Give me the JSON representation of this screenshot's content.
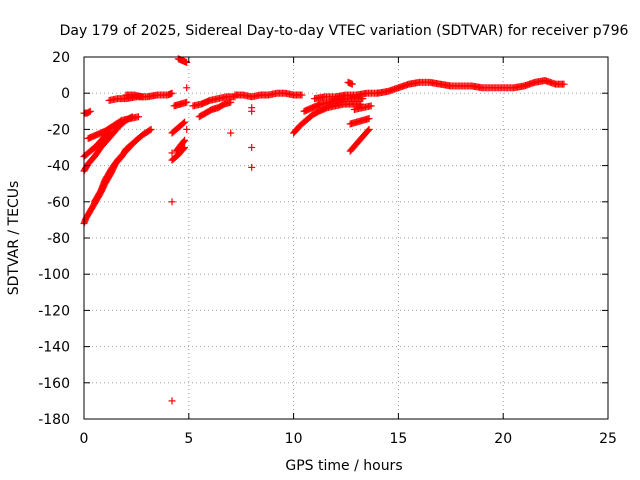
{
  "chart_data": {
    "type": "scatter",
    "title": "Day 179 of 2025, Sidereal Day-to-day VTEC variation (SDTVAR) for receiver p796",
    "xlabel": "GPS time / hours",
    "ylabel": "SDTVAR / TECUs",
    "xlim": [
      0,
      25
    ],
    "ylim": [
      -180,
      20
    ],
    "xticks": [
      0,
      5,
      10,
      15,
      20,
      25
    ],
    "yticks": [
      20,
      0,
      -20,
      -40,
      -60,
      -80,
      -100,
      -120,
      -140,
      -160,
      -180
    ],
    "grid": true,
    "marker": "+",
    "color": "#ff0000",
    "segments": [
      {
        "x": [
          0.0,
          0.1,
          0.3,
          0.5,
          0.8,
          1.0,
          1.3,
          1.5,
          1.8,
          2.0,
          2.3,
          2.6
        ],
        "y": [
          -72,
          -69,
          -65,
          -61,
          -55,
          -50,
          -44,
          -39,
          -35,
          -31,
          -28,
          -25
        ]
      },
      {
        "x": [
          0.5,
          0.8,
          1.0,
          1.3,
          1.6,
          2.0,
          2.4,
          2.8,
          3.2
        ],
        "y": [
          -60,
          -54,
          -48,
          -42,
          -37,
          -32,
          -27,
          -23,
          -20
        ]
      },
      {
        "x": [
          0.0,
          0.2,
          0.5,
          0.8,
          1.1,
          1.4,
          1.7,
          2.0,
          2.3
        ],
        "y": [
          -43,
          -39,
          -35,
          -30,
          -26,
          -22,
          -18,
          -15,
          -13
        ]
      },
      {
        "x": [
          0.0,
          0.3,
          0.6,
          0.9,
          1.2
        ],
        "y": [
          -35,
          -32,
          -29,
          -25,
          -21
        ]
      },
      {
        "x": [
          0.2,
          0.6,
          1.0,
          1.4,
          1.8,
          2.2,
          2.6
        ],
        "y": [
          -25,
          -23,
          -21,
          -18,
          -15,
          -14,
          -13
        ]
      },
      {
        "x": [
          0.0,
          0.15,
          0.3
        ],
        "y": [
          -11,
          -11,
          -10
        ]
      },
      {
        "x": [
          1.2,
          1.6,
          2.0,
          2.5,
          3.0,
          3.5,
          4.0,
          4.2
        ],
        "y": [
          -4,
          -3,
          -3,
          -2,
          -2,
          -1,
          -1,
          0
        ]
      },
      {
        "x": [
          2.0,
          2.4,
          2.8
        ],
        "y": [
          -1,
          -1,
          -2
        ]
      },
      {
        "x": [
          4.2,
          4.5,
          4.8
        ],
        "y": [
          -37,
          -34,
          -30
        ]
      },
      {
        "x": [
          4.4,
          4.6,
          4.8
        ],
        "y": [
          -32,
          -29,
          -26
        ]
      },
      {
        "x": [
          4.2,
          4.5,
          4.8
        ],
        "y": [
          -22,
          -19,
          -16
        ]
      },
      {
        "x": [
          4.3,
          4.6,
          4.9
        ],
        "y": [
          -7,
          -6,
          -5
        ]
      },
      {
        "x": [
          4.5,
          4.7,
          4.9
        ],
        "y": [
          19,
          18,
          17
        ]
      },
      {
        "x": [
          5.5,
          5.8,
          6.1,
          6.4,
          6.7,
          7.0
        ],
        "y": [
          -13,
          -11,
          -9,
          -8,
          -6,
          -5
        ]
      },
      {
        "x": [
          5.2,
          5.6,
          6.0,
          6.4,
          6.8,
          7.2
        ],
        "y": [
          -7,
          -6,
          -4,
          -3,
          -2,
          -2
        ]
      },
      {
        "x": [
          7.2,
          7.6,
          8.0,
          8.4,
          8.8,
          9.2,
          9.6,
          10.0,
          10.4
        ],
        "y": [
          -1,
          -1,
          -2,
          -1,
          -1,
          0,
          0,
          -1,
          -1
        ]
      },
      {
        "x": [
          10.0,
          10.3,
          10.6,
          10.9,
          11.2,
          11.6,
          12.0,
          12.4,
          12.8,
          13.2
        ],
        "y": [
          -22,
          -18,
          -15,
          -12,
          -10,
          -8,
          -7,
          -6,
          -6,
          -6
        ]
      },
      {
        "x": [
          10.5,
          10.9,
          11.3,
          11.7,
          12.1,
          12.5,
          12.9,
          13.3
        ],
        "y": [
          -10,
          -8,
          -6,
          -5,
          -4,
          -3,
          -3,
          -3
        ]
      },
      {
        "x": [
          11.0,
          11.5,
          12.0,
          12.5,
          13.0,
          13.5,
          14.0
        ],
        "y": [
          -3,
          -2,
          -2,
          -1,
          -1,
          0,
          0
        ]
      },
      {
        "x": [
          12.7,
          13.0,
          13.3,
          13.6
        ],
        "y": [
          -32,
          -28,
          -24,
          -20
        ]
      },
      {
        "x": [
          12.7,
          13.0,
          13.3,
          13.6
        ],
        "y": [
          -17,
          -16,
          -15,
          -14
        ]
      },
      {
        "x": [
          12.9,
          13.3,
          13.7
        ],
        "y": [
          -9,
          -8,
          -7
        ]
      },
      {
        "x": [
          12.6,
          12.8
        ],
        "y": [
          6,
          5
        ]
      },
      {
        "x": [
          14.0,
          14.5,
          15.0,
          15.5,
          16.0,
          16.5,
          17.0,
          17.5,
          18.0,
          18.5,
          19.0,
          19.5,
          20.0,
          20.5,
          21.0,
          21.5,
          22.0,
          22.5,
          22.9
        ],
        "y": [
          0,
          1,
          3,
          5,
          6,
          6,
          5,
          4,
          4,
          4,
          3,
          3,
          3,
          3,
          4,
          6,
          7,
          5,
          5
        ]
      }
    ],
    "isolated": [
      {
        "x": 4.2,
        "y": -170
      },
      {
        "x": 4.2,
        "y": -60
      },
      {
        "x": 4.2,
        "y": -33
      },
      {
        "x": 4.9,
        "y": -20
      },
      {
        "x": 4.9,
        "y": 3
      },
      {
        "x": 7.0,
        "y": -22
      },
      {
        "x": 8.0,
        "y": -41
      },
      {
        "x": 8.0,
        "y": -30
      },
      {
        "x": 8.0,
        "y": -10
      },
      {
        "x": 8.0,
        "y": -8
      }
    ]
  }
}
